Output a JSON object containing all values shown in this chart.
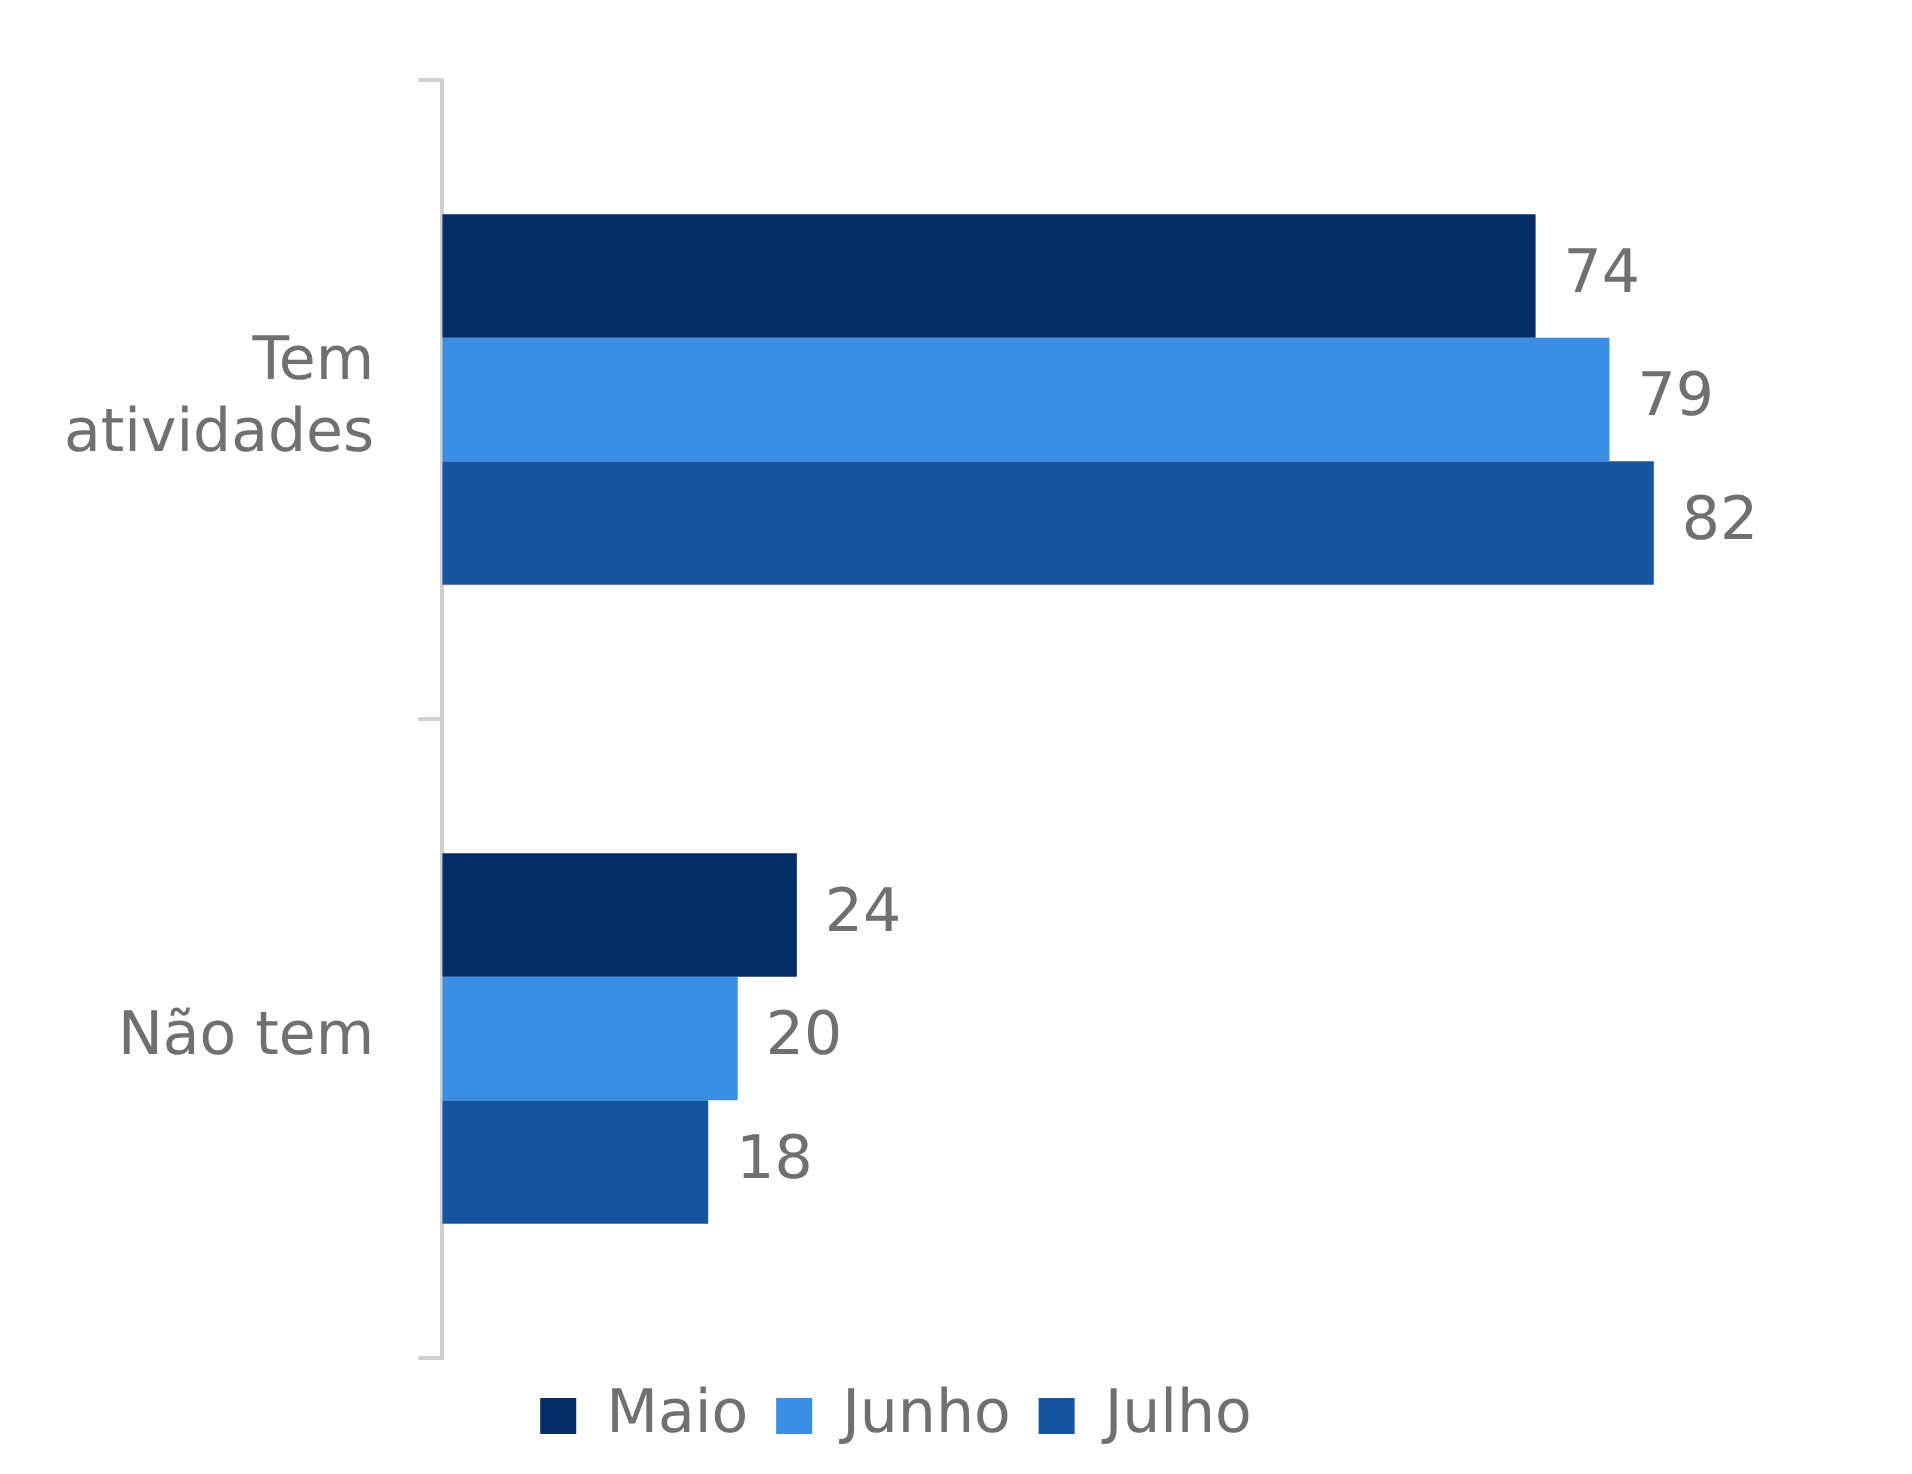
{
  "chart_data": {
    "type": "bar",
    "orientation": "horizontal",
    "categories": [
      "Tem atividades",
      "Não tem"
    ],
    "series": [
      {
        "name": "Maio",
        "color": "#042c66",
        "values": [
          74,
          24
        ]
      },
      {
        "name": "Junho",
        "color": "#3a8ee6",
        "values": [
          79,
          20
        ]
      },
      {
        "name": "Julho",
        "color": "#1555a0",
        "values": [
          82,
          18
        ]
      }
    ],
    "data_labels": true,
    "legend": "bottom",
    "grid": false
  }
}
